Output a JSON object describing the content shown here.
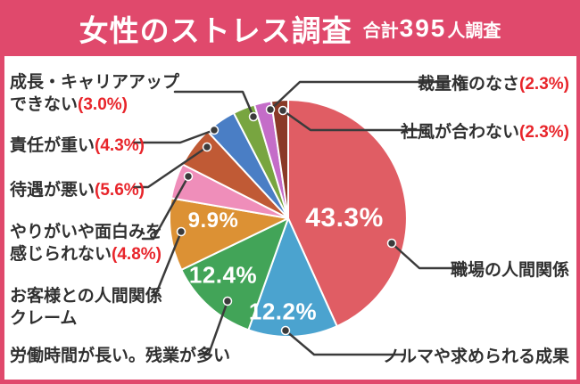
{
  "header": {
    "title": "女性のストレス調査",
    "total_prefix": "合計",
    "total_count": "395",
    "total_suffix": "人調査"
  },
  "colors": {
    "banner_pink": "#e0496c",
    "label_text": "#303030",
    "percent_red": "#e8252b",
    "leader_gray": "#3b3b3b",
    "inside_label_white": "#ffffff"
  },
  "chart_data": {
    "type": "pie",
    "title": "女性のストレス調査",
    "total_label": "合計395人調査",
    "total_surveyed": 395,
    "unit": "%",
    "order": "clockwise-from-top",
    "legend_position": "callout-labels",
    "slices": [
      {
        "label": "職場の人間関係",
        "value": 43.3,
        "color": "#e05d64",
        "inside_label": "43.3%"
      },
      {
        "label": "ノルマや求められる成果",
        "value": 12.2,
        "color": "#4ba3cf",
        "inside_label": "12.2%"
      },
      {
        "label": "労働時間が長い。残業が多い",
        "value": 12.4,
        "color": "#42a458",
        "inside_label": "12.4%"
      },
      {
        "label": "お客様との人間関係\nクレーム",
        "value": 9.9,
        "color": "#dc9134",
        "inside_label": "9.9%"
      },
      {
        "label": "やりがいや面白みを\n感じられない",
        "value": 4.8,
        "color": "#ef8eba",
        "callout_pct": "(4.8%)"
      },
      {
        "label": "待遇が悪い",
        "value": 5.6,
        "color": "#c05a35",
        "callout_pct": "(5.6%)"
      },
      {
        "label": "責任が重い",
        "value": 4.3,
        "color": "#4a7ec5",
        "callout_pct": "(4.3%)"
      },
      {
        "label": "成長・キャリアアップ\nできない",
        "value": 3.0,
        "color": "#78a540",
        "callout_pct": "(3.0%)"
      },
      {
        "label": "裁量権のなさ",
        "value": 2.3,
        "color": "#c46dc8",
        "callout_pct": "(2.3%)"
      },
      {
        "label": "社風が合わない",
        "value": 2.3,
        "color": "#8a3a27",
        "callout_pct": "(2.3%)"
      }
    ]
  }
}
